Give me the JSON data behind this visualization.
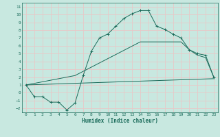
{
  "xlabel": "Humidex (Indice chaleur)",
  "bg_color": "#c8e8e0",
  "grid_color": "#e8c8c8",
  "line_color": "#1a6b5a",
  "xlim": [
    -0.5,
    23.5
  ],
  "ylim": [
    -2.5,
    11.5
  ],
  "xticks": [
    0,
    1,
    2,
    3,
    4,
    5,
    6,
    7,
    8,
    9,
    10,
    11,
    12,
    13,
    14,
    15,
    16,
    17,
    18,
    19,
    20,
    21,
    22,
    23
  ],
  "yticks": [
    -2,
    -1,
    0,
    1,
    2,
    3,
    4,
    5,
    6,
    7,
    8,
    9,
    10,
    11
  ],
  "series1_x": [
    0,
    1,
    2,
    3,
    4,
    5,
    6,
    7,
    8,
    9,
    10,
    11,
    12,
    13,
    14,
    15,
    16,
    17,
    18,
    19,
    20,
    21,
    22,
    23
  ],
  "series1_y": [
    1.0,
    -0.5,
    -0.5,
    -1.2,
    -1.2,
    -2.2,
    -1.3,
    2.2,
    5.3,
    7.0,
    7.5,
    8.5,
    9.5,
    10.1,
    10.5,
    10.5,
    8.5,
    8.1,
    7.5,
    7.0,
    5.5,
    5.0,
    4.8,
    2.0
  ],
  "series2_x": [
    0,
    23
  ],
  "series2_y": [
    1.0,
    1.8
  ],
  "series3_x": [
    0,
    6,
    14,
    19,
    20,
    21,
    22,
    23
  ],
  "series3_y": [
    1.0,
    2.2,
    6.5,
    6.5,
    5.5,
    4.8,
    4.5,
    2.0
  ],
  "marker": "+"
}
